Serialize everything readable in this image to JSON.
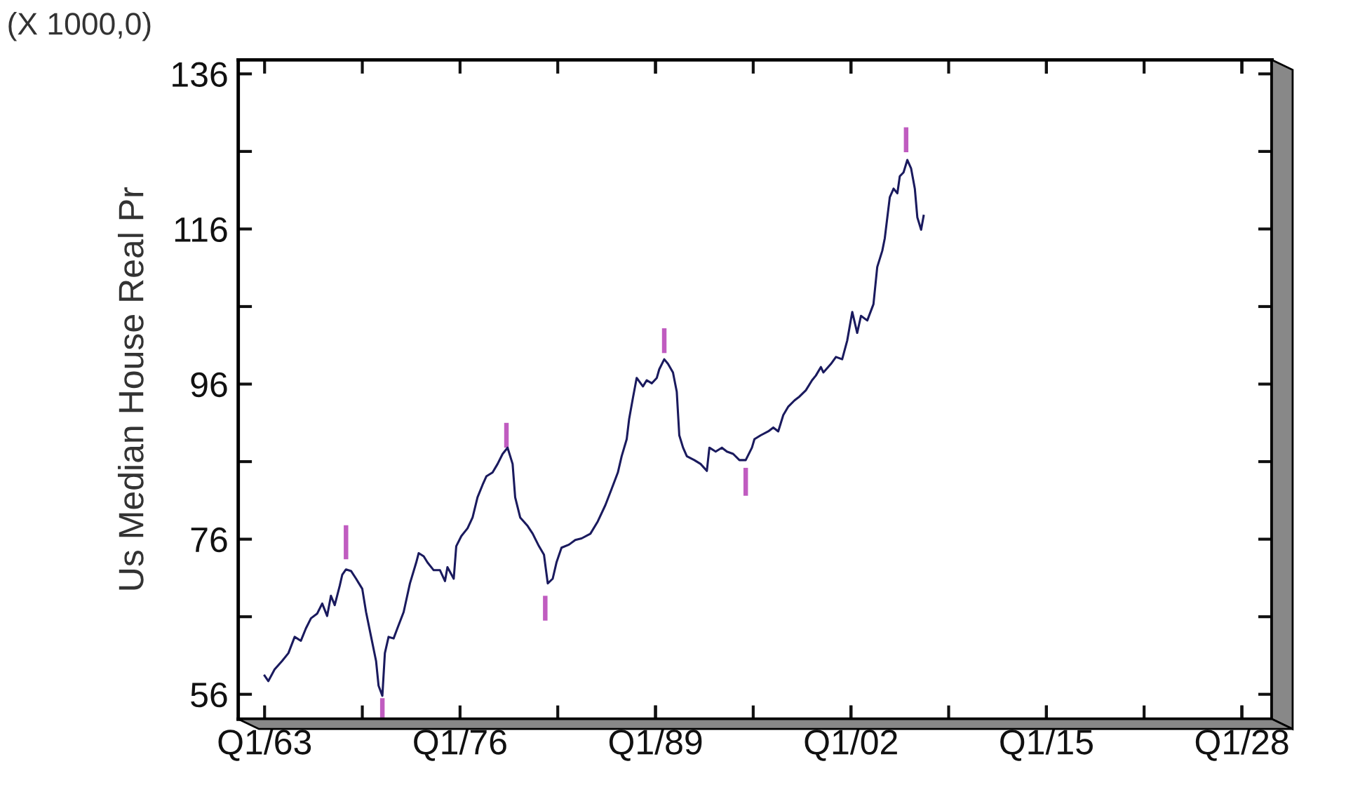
{
  "chart_data": {
    "type": "line",
    "ylabel": "Us Median House Real Pr",
    "annotations": [
      "(X 1000,0)"
    ],
    "xlim": [
      "1961-04",
      "2030-01"
    ],
    "ylim": [
      52.8,
      137.8
    ],
    "xticks": [
      {
        "value": "1963-01",
        "label": "Q1/63"
      },
      {
        "value": "1976-01",
        "label": "Q1/76"
      },
      {
        "value": "1989-01",
        "label": "Q1/89"
      },
      {
        "value": "2002-01",
        "label": "Q1/02"
      },
      {
        "value": "2015-01",
        "label": "Q1/15"
      },
      {
        "value": "2028-01",
        "label": "Q1/28"
      }
    ],
    "yticks": [
      56,
      76,
      96,
      116,
      136
    ],
    "series": [
      {
        "color": "#1a1a5e",
        "x": [
          "1963-01",
          "1963-04",
          "1963-09",
          "1964-03",
          "1964-08",
          "1965-01",
          "1965-06",
          "1965-10",
          "1966-02",
          "1966-07",
          "1966-11",
          "1967-03",
          "1967-06",
          "1967-09",
          "1968-01",
          "1968-03",
          "1968-06",
          "1968-10",
          "1969-02",
          "1969-07",
          "1969-10",
          "1970-02",
          "1970-06",
          "1970-08",
          "1970-11",
          "1971-01",
          "1971-04",
          "1971-08",
          "1971-11",
          "1972-04",
          "1972-09",
          "1973-02",
          "1973-04",
          "1973-08",
          "1973-11",
          "1974-04",
          "1974-09",
          "1975-01",
          "1975-03",
          "1975-08",
          "1975-10",
          "1976-02",
          "1976-07",
          "1976-11",
          "1977-03",
          "1977-07",
          "1977-10",
          "1978-03",
          "1978-07",
          "1978-11",
          "1979-03",
          "1979-07",
          "1979-09",
          "1980-01",
          "1980-07",
          "1980-11",
          "1981-04",
          "1981-08",
          "1981-11",
          "1982-03",
          "1982-06",
          "1982-10",
          "1983-04",
          "1983-09",
          "1984-02",
          "1984-09",
          "1985-03",
          "1985-09",
          "1986-02",
          "1986-07",
          "1986-10",
          "1987-02",
          "1987-04",
          "1987-07",
          "1987-10",
          "1988-03",
          "1988-06",
          "1988-10",
          "1989-02",
          "1989-04",
          "1989-08",
          "1989-11",
          "1990-03",
          "1990-06",
          "1990-08",
          "1990-11",
          "1991-02",
          "1991-08",
          "1992-01",
          "1992-06",
          "1992-08",
          "1993-01",
          "1993-06",
          "1993-10",
          "1994-03",
          "1994-08",
          "1995-01",
          "1995-06",
          "1995-08",
          "1996-01",
          "1996-07",
          "1996-11",
          "1997-03",
          "1997-07",
          "1997-11",
          "1998-04",
          "1998-08",
          "1999-01",
          "1999-06",
          "1999-09",
          "2000-01",
          "2000-03",
          "2000-09",
          "2001-01",
          "2001-06",
          "2001-10",
          "2002-02",
          "2002-06",
          "2002-09",
          "2003-02",
          "2003-07",
          "2003-10",
          "2004-02",
          "2004-04",
          "2004-08",
          "2004-11",
          "2005-02",
          "2005-04",
          "2005-07",
          "2005-10",
          "2006-01",
          "2006-04",
          "2006-06",
          "2006-09",
          "2006-11"
        ],
        "values": [
          58.4,
          57.7,
          59.2,
          60.3,
          61.3,
          63.4,
          62.9,
          64.5,
          65.8,
          66.4,
          67.7,
          66.1,
          68.7,
          67.5,
          70.0,
          71.4,
          72.1,
          71.9,
          70.9,
          69.6,
          66.6,
          63.4,
          60.3,
          57.1,
          55.8,
          61.3,
          63.4,
          63.2,
          64.5,
          66.6,
          70.3,
          73.0,
          74.2,
          73.8,
          73.0,
          72.0,
          72.0,
          70.6,
          72.4,
          70.9,
          75.1,
          76.4,
          77.4,
          78.8,
          81.4,
          83.0,
          84.1,
          84.6,
          85.7,
          87.0,
          87.8,
          85.7,
          81.4,
          78.8,
          77.7,
          76.7,
          75.1,
          74.0,
          70.3,
          70.9,
          73.0,
          74.9,
          75.3,
          75.9,
          76.1,
          76.7,
          78.3,
          80.4,
          82.5,
          84.6,
          86.7,
          88.9,
          91.5,
          94.2,
          96.8,
          95.7,
          96.5,
          96.1,
          96.8,
          97.9,
          99.2,
          98.6,
          97.5,
          95.0,
          89.4,
          87.8,
          86.7,
          86.2,
          85.7,
          84.8,
          87.8,
          87.3,
          87.8,
          87.3,
          87.0,
          86.2,
          86.2,
          87.8,
          88.9,
          89.4,
          89.9,
          90.4,
          89.9,
          92.0,
          93.1,
          93.9,
          94.4,
          95.2,
          96.5,
          97.1,
          98.2,
          97.5,
          98.6,
          99.5,
          99.2,
          101.6,
          105.3,
          102.6,
          104.8,
          104.2,
          106.3,
          111.1,
          113.2,
          114.8,
          120.1,
          121.2,
          120.6,
          122.8,
          123.3,
          124.9,
          123.8,
          121.2,
          117.5,
          115.9,
          117.7
        ]
      },
      {
        "type": "bar",
        "color": "#c05cc0",
        "x": [
          "1968-06",
          "1970-11",
          "1979-02",
          "1981-09",
          "1989-08",
          "1995-01",
          "2005-09"
        ],
        "base": [
          73.4,
          53.0,
          87.8,
          65.5,
          100.0,
          81.6,
          125.9
        ],
        "values": [
          4.4,
          2.5,
          3.2,
          3.2,
          3.2,
          3.6,
          3.2
        ]
      }
    ]
  }
}
